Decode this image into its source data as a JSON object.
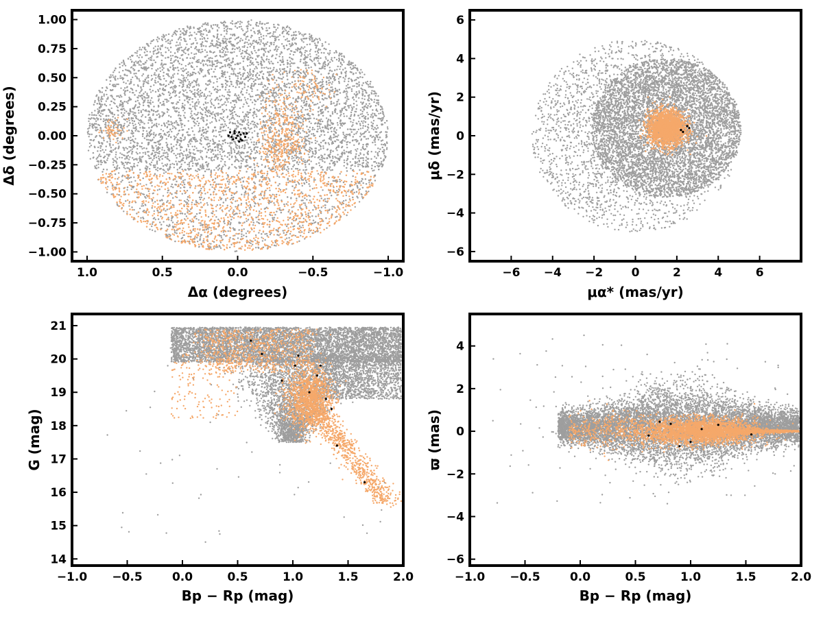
{
  "colors": {
    "field": "#9e9e9e",
    "members": "#f5a86a",
    "core": "#000000",
    "frame": "#000000"
  },
  "chart_data": [
    {
      "id": "sky",
      "type": "scatter",
      "xlabel": "Δα (degrees)",
      "ylabel": "Δδ (degrees)",
      "xlim": [
        1.1,
        -1.1
      ],
      "ylim": [
        -1.08,
        1.08
      ],
      "xticks": [
        1.0,
        0.5,
        0.0,
        -0.5,
        -1.0
      ],
      "xtick_labels": [
        "1.0",
        "0.5",
        "0.0",
        "−0.5",
        "−1.0"
      ],
      "yticks": [
        1.0,
        0.75,
        0.5,
        0.25,
        0.0,
        -0.25,
        -0.5,
        -0.75,
        -1.0
      ],
      "ytick_labels": [
        "1.00",
        "0.75",
        "0.50",
        "0.25",
        "0.00",
        "−0.25",
        "−0.50",
        "−0.75",
        "−1.00"
      ],
      "grid": false,
      "series": [
        {
          "role": "field",
          "color": "#9e9e9e",
          "distribution": "uniform disk, radius 1 deg, centre (0,0)"
        },
        {
          "role": "members",
          "color": "#f5a86a",
          "distribution": "southern part of field (Δδ < −0.3) plus clumps near (−0.3, 0.1), (−0.5, 0.4), (0.85, 0.05)"
        },
        {
          "role": "core",
          "color": "#000000",
          "points": [
            [
              0.05,
              0.03
            ],
            [
              0.02,
              0.02
            ],
            [
              -0.01,
              0.03
            ],
            [
              -0.04,
              0.02
            ],
            [
              0.04,
              -0.01
            ],
            [
              0.01,
              -0.02
            ],
            [
              -0.02,
              -0.03
            ],
            [
              -0.05,
              -0.01
            ],
            [
              0.0,
              0.0
            ],
            [
              -0.02,
              0.01
            ],
            [
              0.03,
              -0.03
            ],
            [
              -0.03,
              -0.04
            ],
            [
              0.06,
              0.0
            ],
            [
              -0.06,
              0.02
            ],
            [
              0.02,
              0.04
            ],
            [
              -0.01,
              -0.05
            ]
          ]
        }
      ]
    },
    {
      "id": "proper-motion",
      "type": "scatter",
      "xlabel": "μα* (mas/yr)",
      "ylabel": "μδ (mas/yr)",
      "xlim": [
        -8.0,
        8.0
      ],
      "ylim": [
        -6.5,
        6.5
      ],
      "xticks": [
        -6,
        -4,
        -2,
        0,
        2,
        4,
        6
      ],
      "xtick_labels": [
        "−6",
        "−4",
        "−2",
        "0",
        "2",
        "4",
        "6"
      ],
      "yticks": [
        6,
        4,
        2,
        0,
        -2,
        -4,
        -6
      ],
      "ytick_labels": [
        "6",
        "4",
        "2",
        "0",
        "−2",
        "−4",
        "−6"
      ],
      "grid": false,
      "series": [
        {
          "role": "field",
          "color": "#9e9e9e",
          "distribution": "disk radius 5 centred (0,0) with dense core near (1.5, 0.4) and sparse tail toward negative μα"
        },
        {
          "role": "members",
          "color": "#f5a86a",
          "distribution": "compact clump centred (1.5, 0.4), radius ~1.1"
        },
        {
          "role": "core",
          "color": "#000000",
          "points": [
            [
              2.2,
              0.3
            ],
            [
              2.5,
              0.5
            ],
            [
              2.3,
              0.2
            ],
            [
              2.6,
              0.4
            ]
          ]
        }
      ]
    },
    {
      "id": "cmd-g",
      "type": "scatter",
      "xlabel": "Bp − Rp (mag)",
      "ylabel": "G (mag)",
      "xlim": [
        -1.0,
        2.0
      ],
      "ylim": [
        13.8,
        21.35
      ],
      "y_inverted": false,
      "xticks": [
        -1.0,
        -0.5,
        0.0,
        0.5,
        1.0,
        1.5,
        2.0
      ],
      "xtick_labels": [
        "−1.0",
        "−0.5",
        "0.0",
        "0.5",
        "1.0",
        "1.5",
        "2.0"
      ],
      "yticks": [
        21,
        20,
        19,
        18,
        17,
        16,
        15,
        14
      ],
      "ytick_labels": [
        "21",
        "20",
        "19",
        "18",
        "17",
        "16",
        "15",
        "14"
      ],
      "grid": false,
      "series": [
        {
          "role": "field",
          "color": "#9e9e9e",
          "distribution": "dense band at G 20–21 across colour 0–2, wedge down to (1.1, 17.5)"
        },
        {
          "role": "members",
          "color": "#f5a86a",
          "distribution": "sequence from (1.15, 18.8) down to (1.85, 15.8), blob around (1.15, 18.8), blue branch near (0–0.5, 19–20)"
        },
        {
          "role": "core",
          "color": "#000000",
          "points": [
            [
              0.62,
              20.55
            ],
            [
              0.72,
              20.15
            ],
            [
              1.05,
              20.1
            ],
            [
              0.9,
              19.35
            ],
            [
              1.22,
              19.5
            ],
            [
              1.25,
              19.8
            ],
            [
              1.3,
              18.8
            ],
            [
              1.35,
              18.5
            ],
            [
              1.65,
              16.3
            ],
            [
              1.02,
              19.8
            ],
            [
              1.15,
              19.0
            ],
            [
              1.4,
              17.4
            ]
          ]
        }
      ]
    },
    {
      "id": "parallax",
      "type": "scatter",
      "xlabel": "Bp − Rp (mag)",
      "ylabel": "ϖ (mas)",
      "xlim": [
        -1.0,
        2.0
      ],
      "ylim": [
        -6.3,
        5.5
      ],
      "xticks": [
        -1.0,
        -0.5,
        0.0,
        0.5,
        1.0,
        1.5,
        2.0
      ],
      "xtick_labels": [
        "−1.0",
        "−0.5",
        "0.0",
        "0.5",
        "1.0",
        "1.5",
        "2.0"
      ],
      "yticks": [
        4,
        2,
        0,
        -2,
        -4,
        -6
      ],
      "ytick_labels": [
        "4",
        "2",
        "0",
        "−2",
        "−4",
        "−6"
      ],
      "grid": false,
      "series": [
        {
          "role": "field",
          "color": "#9e9e9e",
          "distribution": "horizontal band around ϖ = 0.2 widening toward colour ~1, spread ±2"
        },
        {
          "role": "members",
          "color": "#f5a86a",
          "distribution": "narrow band around ϖ = 0, dense at colour 1.0–1.3, tapering to 2.0"
        },
        {
          "role": "core",
          "color": "#000000",
          "points": [
            [
              0.62,
              -0.2
            ],
            [
              0.72,
              0.45
            ],
            [
              0.82,
              0.35
            ],
            [
              0.9,
              -0.7
            ],
            [
              1.0,
              -0.5
            ],
            [
              1.1,
              0.1
            ],
            [
              1.25,
              0.3
            ],
            [
              1.55,
              -0.15
            ]
          ]
        }
      ]
    }
  ]
}
